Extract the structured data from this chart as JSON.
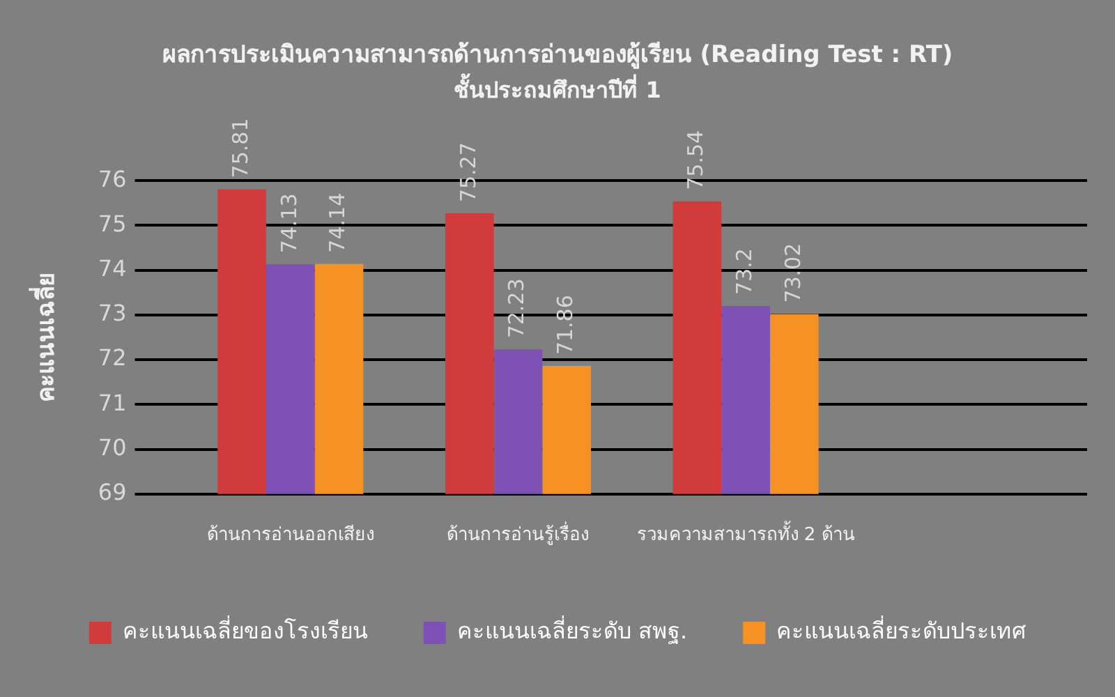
{
  "chart_data": {
    "type": "bar",
    "title": "ผลการประเมินความสามารถด้านการอ่านของผู้เรียน (Reading Test : RT)",
    "subtitle": "ชั้นประถมศึกษาปีที่ 1",
    "ylabel": "คะแนนเฉลี่ย",
    "categories": [
      "ด้านการอ่านออกเสียง",
      "ด้านการอ่านรู้เรื่อง",
      "รวมความสามารถทั้ง 2 ด้าน",
      null
    ],
    "series": [
      {
        "name": "คะแนนเฉลี่ยของโรงเรียน",
        "color": "#d23b3b",
        "values": [
          75.81,
          75.27,
          75.54,
          null
        ]
      },
      {
        "name": "คะแนนเฉลี่ยระดับ สพฐ.",
        "color": "#7e52b4",
        "values": [
          74.13,
          72.23,
          73.2,
          null
        ]
      },
      {
        "name": "คะแนนเฉลี่ยระดับประเทศ",
        "color": "#f59223",
        "values": [
          74.14,
          71.86,
          73.02,
          null
        ]
      }
    ],
    "ylim": [
      69,
      76
    ],
    "yticks": [
      69,
      70,
      71,
      72,
      73,
      74,
      75,
      76
    ],
    "grid": "y",
    "legend": "bottom",
    "data_labels": true
  }
}
